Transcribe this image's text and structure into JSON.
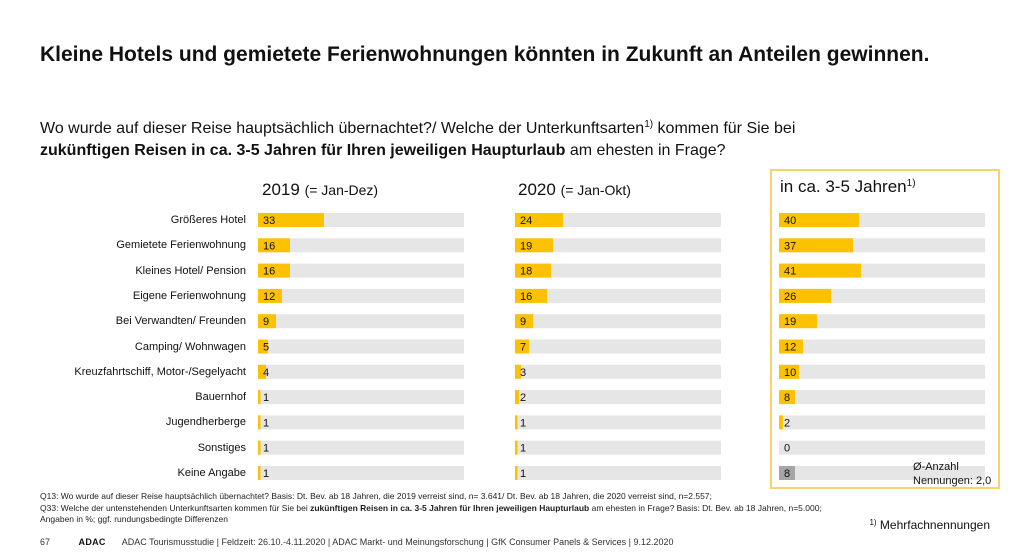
{
  "title": "Kleine Hotels und gemietete Ferienwohnungen könnten in Zukunft an Anteilen gewinnen.",
  "question": {
    "part1": "Wo wurde auf dieser Reise hauptsächlich übernachtet?/ Welche der Unterkunftsarten",
    "sup": "1)",
    "part2": " kommen für Sie bei",
    "bold": "zukünftigen Reisen in ca. 3-5 Jahren für Ihren jeweiligen Haupturlaub",
    "part3": " am ehesten in Frage?"
  },
  "panels": [
    {
      "heading": "2019",
      "sub": "(= Jan-Dez)",
      "sup": ""
    },
    {
      "heading": "2020",
      "sub": "(= Jan-Okt)",
      "sup": ""
    },
    {
      "heading": "in ca. 3-5 Jahren",
      "sub": "",
      "sup": "1)"
    }
  ],
  "average_note": {
    "line1": "Ø-Anzahl",
    "line2": "Nennungen: 2,0"
  },
  "chart_data": {
    "type": "bar",
    "orientation": "horizontal",
    "unit": "%",
    "xlim": [
      0,
      100
    ],
    "categories": [
      "Größeres Hotel",
      "Gemietete Ferienwohnung",
      "Kleines Hotel/ Pension",
      "Eigene Ferienwohnung",
      "Bei Verwandten/ Freunden",
      "Camping/ Wohnwagen",
      "Kreuzfahrtschiff, Motor-/Segelyacht",
      "Bauernhof",
      "Jugendherberge",
      "Sonstiges",
      "Keine Angabe"
    ],
    "series": [
      {
        "name": "2019 (= Jan-Dez)",
        "values": [
          33,
          16,
          16,
          12,
          9,
          5,
          4,
          1,
          1,
          1,
          1
        ]
      },
      {
        "name": "2020 (= Jan-Okt)",
        "values": [
          24,
          19,
          18,
          16,
          9,
          7,
          3,
          2,
          1,
          1,
          1
        ]
      },
      {
        "name": "in ca. 3-5 Jahren",
        "values": [
          40,
          37,
          41,
          26,
          19,
          12,
          10,
          8,
          2,
          0,
          8
        ]
      }
    ],
    "colors": {
      "bar": "#fcc200",
      "track": "#e6e6e6",
      "no_answer_future": "#a6a6a6"
    }
  },
  "footnotes": {
    "q13": "Q13: Wo wurde auf dieser Reise hauptsächlich übernachtet? Basis: Dt. Bev. ab 18 Jahren, die 2019 verreist sind, n= 3.641/ Dt. Bev. ab 18 Jahren, die 2020 verreist sind, n=2.557;",
    "q33_a": "Q33: Welche der untenstehenden Unterkunftsarten kommen für Sie bei ",
    "q33_bold": "zukünftigen Reisen in ca. 3-5 Jahren für Ihren jeweiligen Haupturlaub",
    "q33_b": " am ehesten in Frage? Basis: Dt. Bev. ab 18 Jahren, n=5.000;",
    "units": "Angaben in %; ggf. rundungsbedingte Differenzen"
  },
  "multiple_mentions": {
    "sup": "1)",
    "text": "Mehrfachnennungen"
  },
  "footer": {
    "page": "67",
    "logo": "ADAC",
    "text": "ADAC Tourismusstudie | Feldzeit: 26.10.-4.11.2020 | ADAC Markt- und Meinungsforschung | GfK Consumer Panels & Services | 9.12.2020"
  }
}
